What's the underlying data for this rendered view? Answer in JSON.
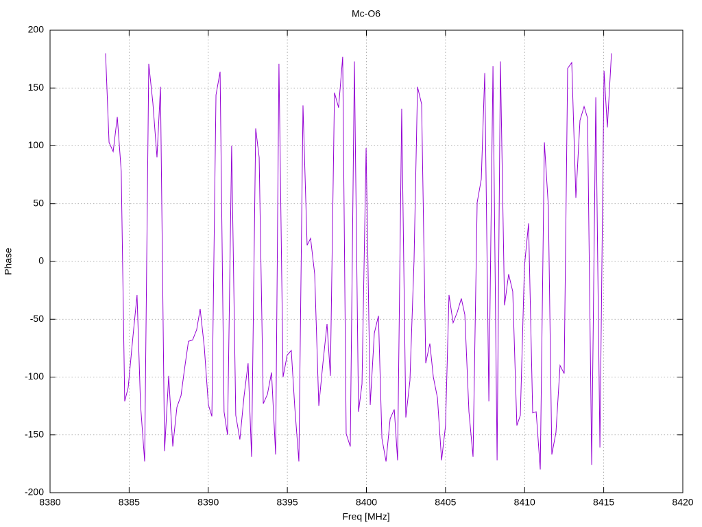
{
  "chart_data": {
    "type": "line",
    "title": "Mc-O6",
    "x_label": "Freq [MHz]",
    "y_label": "Phase",
    "x": [
      8383.51,
      8383.73,
      8383.99,
      8384.25,
      8384.5,
      8384.72,
      8384.94,
      8385.24,
      8385.5,
      8385.72,
      8385.98,
      8386.24,
      8386.5,
      8386.76,
      8386.98,
      8387.24,
      8387.5,
      8387.76,
      8388.02,
      8388.28,
      8388.49,
      8388.75,
      8389.01,
      8389.27,
      8389.49,
      8389.75,
      8390.01,
      8390.23,
      8390.49,
      8390.75,
      8391.0,
      8391.22,
      8391.48,
      8391.74,
      8392.0,
      8392.26,
      8392.52,
      8392.74,
      8393.0,
      8393.22,
      8393.48,
      8393.74,
      8394.0,
      8394.26,
      8394.47,
      8394.73,
      8394.99,
      8395.25,
      8395.47,
      8395.73,
      8395.99,
      8396.25,
      8396.47,
      8396.73,
      8396.99,
      8397.25,
      8397.51,
      8397.72,
      8397.98,
      8398.24,
      8398.5,
      8398.72,
      8398.98,
      8399.24,
      8399.5,
      8399.72,
      8399.98,
      8400.24,
      8400.5,
      8400.76,
      8400.98,
      8401.24,
      8401.5,
      8401.76,
      8401.97,
      8402.23,
      8402.49,
      8402.75,
      8403.01,
      8403.23,
      8403.49,
      8403.75,
      8404.01,
      8404.23,
      8404.49,
      8404.75,
      8405.0,
      8405.22,
      8405.48,
      8405.74,
      8406.0,
      8406.22,
      8406.48,
      8406.74,
      8407.0,
      8407.26,
      8407.48,
      8407.74,
      8408.0,
      8408.26,
      8408.47,
      8408.73,
      8408.99,
      8409.25,
      8409.51,
      8409.73,
      8409.99,
      8410.25,
      8410.51,
      8410.73,
      8410.99,
      8411.25,
      8411.5,
      8411.72,
      8411.98,
      8412.24,
      8412.5,
      8412.72,
      8412.98,
      8413.24,
      8413.5,
      8413.76,
      8413.98,
      8414.24,
      8414.5,
      8414.76,
      8415.02,
      8415.23,
      8415.49
    ],
    "series": [
      {
        "color": "#9400d3",
        "values": [
          180,
          103,
          95,
          125,
          78,
          -121,
          -109,
          -65,
          -29,
          -124,
          -173,
          171,
          137,
          90,
          151,
          -164,
          -99,
          -160,
          -126,
          -116,
          -94,
          -69,
          -68,
          -59,
          -41,
          -74,
          -124,
          -134,
          144,
          164,
          -130,
          -150,
          100,
          -133,
          -154,
          -117,
          -88,
          -169,
          115,
          90,
          -123,
          -115,
          -96,
          -167,
          171,
          -100,
          -81,
          -77,
          -126,
          -173,
          135,
          14,
          20,
          -11,
          -125,
          -88,
          -54,
          -99,
          146,
          133,
          177,
          -149,
          -160,
          173,
          -130,
          -106,
          98,
          -124,
          -62,
          -47,
          -153,
          -173,
          -136,
          -128,
          -172,
          132,
          -135,
          -103,
          1,
          151,
          136,
          -88,
          -71,
          -100,
          -118,
          -172,
          -142,
          -29,
          -53,
          -44,
          -32,
          -46,
          -130,
          -169,
          51,
          71,
          163,
          -121,
          169,
          -172,
          173,
          -38,
          -11,
          -26,
          -142,
          -133,
          -4,
          33,
          -131,
          -130,
          -180,
          103,
          48,
          -167,
          -148,
          -90,
          -97,
          167,
          172,
          55,
          122,
          134,
          124,
          -176,
          142,
          -161,
          165,
          116,
          180
        ]
      }
    ],
    "xlim": [
      8380,
      8420
    ],
    "xticks": [
      8380,
      8385,
      8390,
      8395,
      8400,
      8405,
      8410,
      8415,
      8420
    ],
    "ylim": [
      -200,
      200
    ],
    "yticks": [
      -200,
      -150,
      -100,
      -50,
      0,
      50,
      100,
      150,
      200
    ],
    "grid": true
  }
}
